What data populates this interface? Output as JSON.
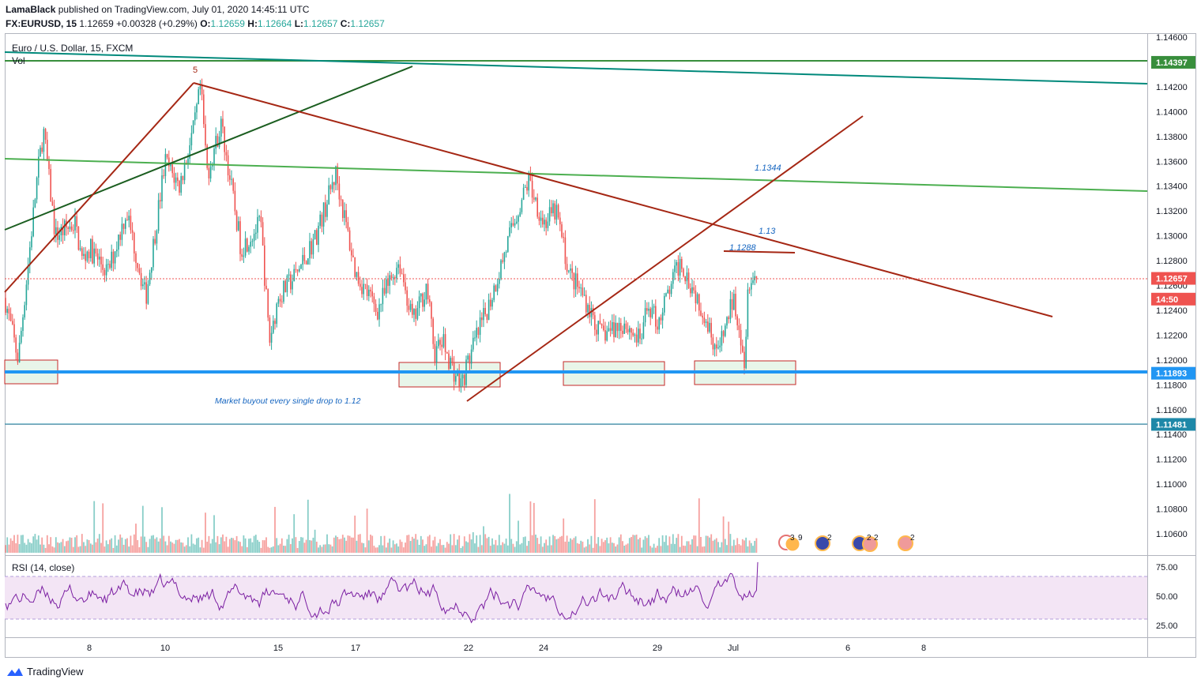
{
  "header": {
    "author": "LamaBlack",
    "published_text": "published on TradingView.com, July 01, 2020 14:45:11 UTC",
    "symbol": "FX:EURUSD, 15",
    "last": "1.12659",
    "change": "+0.00328 (+0.29%)",
    "o_label": "O:",
    "o_value": "1.12659",
    "h_label": "H:",
    "h_value": "1.12664",
    "l_label": "L:",
    "l_value": "1.12657",
    "c_label": "C:",
    "c_value": "1.12657"
  },
  "pane": {
    "title": "Euro / U.S. Dollar, 15, FXCM",
    "vol_label": "Vol",
    "rsi_label": "RSI (14, close)"
  },
  "footer": {
    "brand": "TradingView"
  },
  "colors": {
    "up": "#26a69a",
    "down": "#ef5350",
    "support": "#2196f3",
    "resistance": "#388e3c",
    "trend": "#a52714",
    "dark_green": "#1b5e20",
    "teal_line": "#00897b",
    "rsi": "#7b1fa2",
    "rsi_band": "#f3e5f5"
  },
  "chart_data": [
    {
      "type": "candlestick",
      "symbol": "EURUSD",
      "timeframe": "15",
      "x_ticks": [
        "8",
        "10",
        "15",
        "17",
        "22",
        "24",
        "29",
        "Jul",
        "6",
        "8"
      ],
      "y_ticks": [
        "1.14600",
        "1.14400",
        "1.14200",
        "1.14000",
        "1.13800",
        "1.13600",
        "1.13400",
        "1.13200",
        "1.13000",
        "1.12800",
        "1.12600",
        "1.12400",
        "1.12200",
        "1.12000",
        "1.11800",
        "1.11600",
        "1.11400",
        "1.11200",
        "1.11000",
        "1.10800",
        "1.10600"
      ],
      "ylim": [
        1.105,
        1.1465
      ],
      "price_labels": [
        {
          "text": "1.14397",
          "value": 1.14397,
          "color": "#388e3c"
        },
        {
          "text": "1.12657",
          "value": 1.12657,
          "color": "#ef5350"
        },
        {
          "text": "14:50",
          "value": 1.1249,
          "color": "#ef5350"
        },
        {
          "text": "1.11893",
          "value": 1.11893,
          "color": "#2196f3"
        },
        {
          "text": "1.11481",
          "value": 1.11481,
          "color": "#1e88a8"
        }
      ],
      "price_path": [
        [
          "Jun 4 00:00",
          1.125
        ],
        [
          "Jun 4 12:00",
          1.12
        ],
        [
          "Jun 5 06:00",
          1.135
        ],
        [
          "Jun 5 12:00",
          1.1385
        ],
        [
          "Jun 6",
          1.13
        ],
        [
          "Jun 7",
          1.131
        ],
        [
          "Jun 7 12:00",
          1.128
        ],
        [
          "Jun 8",
          1.129
        ],
        [
          "Jun 8 12:00",
          1.127
        ],
        [
          "Jun 9",
          1.132
        ],
        [
          "Jun 9 12:00",
          1.125
        ],
        [
          "Jun 10",
          1.136
        ],
        [
          "Jun 10 12:00",
          1.134
        ],
        [
          "Jun 11",
          1.1385
        ],
        [
          "Jun 11 06:00",
          1.142
        ],
        [
          "Jun 11 12:00",
          1.135
        ],
        [
          "Jun 12",
          1.139
        ],
        [
          "Jun 12 12:00",
          1.134
        ],
        [
          "Jun 13",
          1.129
        ],
        [
          "Jun 14",
          1.131
        ],
        [
          "Jun 14 12:00",
          1.1215
        ],
        [
          "Jun 15",
          1.125
        ],
        [
          "Jun 15 12:00",
          1.127
        ],
        [
          "Jun 16",
          1.13
        ],
        [
          "Jun 16 12:00",
          1.135
        ],
        [
          "Jun 17",
          1.127
        ],
        [
          "Jun 17 12:00",
          1.124
        ],
        [
          "Jun 18",
          1.128
        ],
        [
          "Jun 18 12:00",
          1.123
        ],
        [
          "Jun 19",
          1.126
        ],
        [
          "Jun 19 12:00",
          1.1205
        ],
        [
          "Jun 20",
          1.1215
        ],
        [
          "Jun 21",
          1.119
        ],
        [
          "Jun 21 12:00",
          1.118
        ],
        [
          "Jun 22",
          1.12
        ],
        [
          "Jun 22 12:00",
          1.125
        ],
        [
          "Jun 23",
          1.131
        ],
        [
          "Jun 23 12:00",
          1.1345
        ],
        [
          "Jun 24",
          1.131
        ],
        [
          "Jun 24 12:00",
          1.132
        ],
        [
          "Jun 25",
          1.127
        ],
        [
          "Jun 25 12:00",
          1.125
        ],
        [
          "Jun 26",
          1.122
        ],
        [
          "Jun 27",
          1.123
        ],
        [
          "Jun 28",
          1.1215
        ],
        [
          "Jun 28 12:00",
          1.1245
        ],
        [
          "Jun 29",
          1.123
        ],
        [
          "Jun 29 12:00",
          1.128
        ],
        [
          "Jun 30",
          1.124
        ],
        [
          "Jun 30 12:00",
          1.1205
        ],
        [
          "Jul 1",
          1.125
        ],
        [
          "Jul 1 06:00",
          1.123
        ],
        [
          "Jul 1 12:00",
          1.1195
        ],
        [
          "Jul 1 14:45",
          1.12657
        ]
      ],
      "annotations": [
        {
          "text": "5"
        },
        {
          "text": "1.1344"
        },
        {
          "text": "1.13"
        },
        {
          "text": "1.1288"
        },
        {
          "text": "Market buyout every single drop to 1.12"
        }
      ],
      "horizontal_lines": [
        {
          "value": 1.14397,
          "color": "#388e3c"
        },
        {
          "value": 1.11893,
          "color": "#2196f3"
        },
        {
          "value": 1.11481,
          "color": "#1e88a8"
        }
      ]
    },
    {
      "type": "line",
      "title": "RSI (14, close)",
      "y_ticks": [
        "75.00",
        "50.00",
        "25.00"
      ],
      "ylim": [
        15,
        85
      ],
      "band": [
        30,
        70
      ],
      "last_value": 79
    }
  ]
}
